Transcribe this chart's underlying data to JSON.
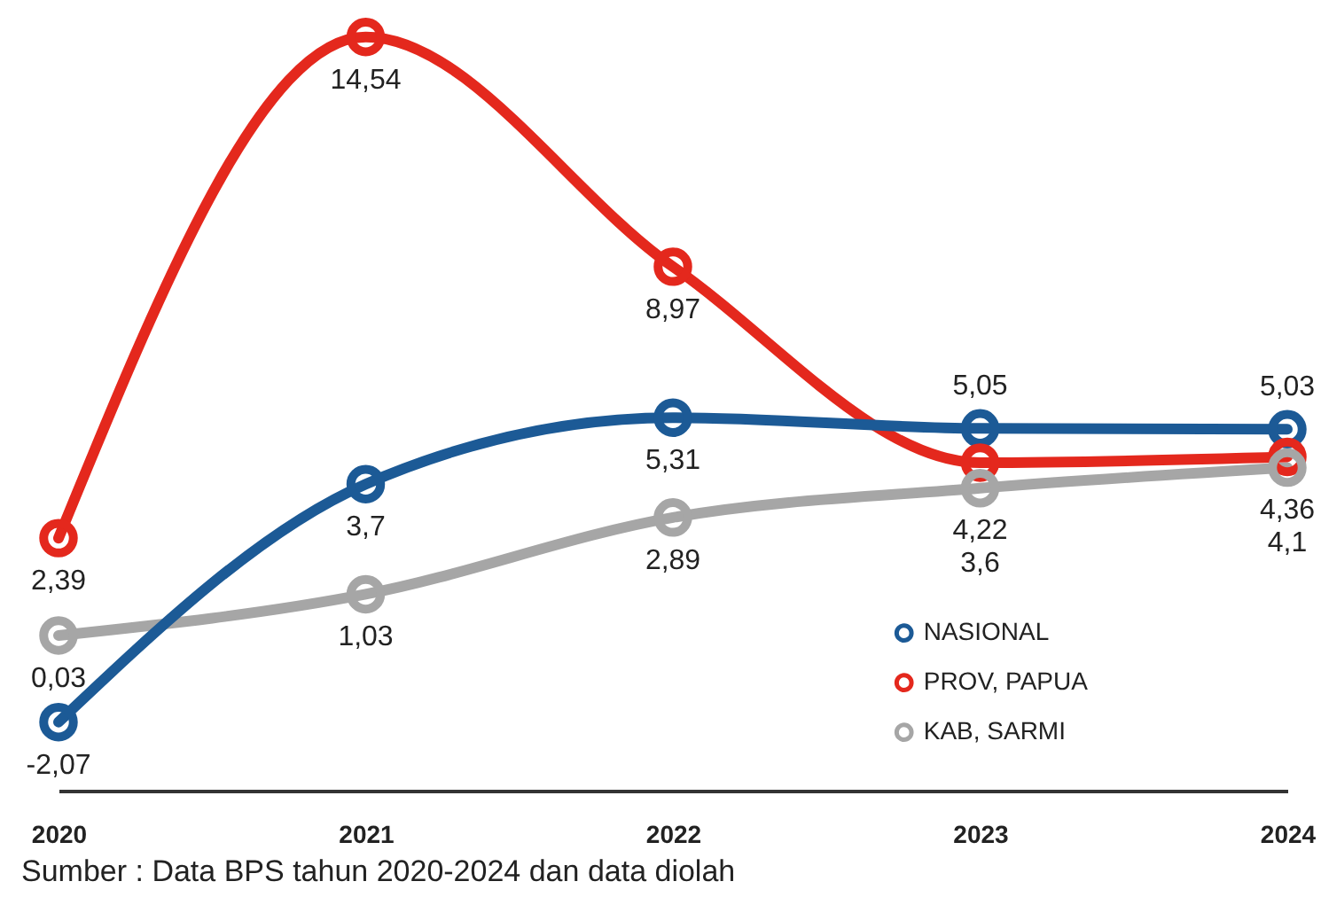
{
  "chart_data": {
    "type": "line",
    "categories": [
      "2020",
      "2021",
      "2022",
      "2023",
      "2024"
    ],
    "series": [
      {
        "name": "NASIONAL",
        "color": "#1c5a96",
        "values": [
          -2.07,
          3.7,
          5.31,
          5.05,
          5.03
        ],
        "value_labels": [
          "-2,07",
          "3,7",
          "5,31",
          "5,05",
          "5,03"
        ]
      },
      {
        "name": "PROV, PAPUA",
        "color": "#e4281d",
        "values": [
          2.39,
          14.54,
          8.97,
          4.22,
          4.36
        ],
        "value_labels": [
          "2,39",
          "14,54",
          "8,97",
          "4,22",
          "4,36"
        ]
      },
      {
        "name": "KAB, SARMI",
        "color": "#a6a6a6",
        "values": [
          0.03,
          1.03,
          2.89,
          3.6,
          4.1
        ],
        "value_labels": [
          "0,03",
          "1,03",
          "2,89",
          "3,6",
          "4,1"
        ]
      }
    ],
    "legend": "bottom right",
    "marker": "circle",
    "line_style": "solid",
    "annotations": [
      "Sumber : Data BPS tahun 2020-2024 dan data diolah"
    ]
  }
}
